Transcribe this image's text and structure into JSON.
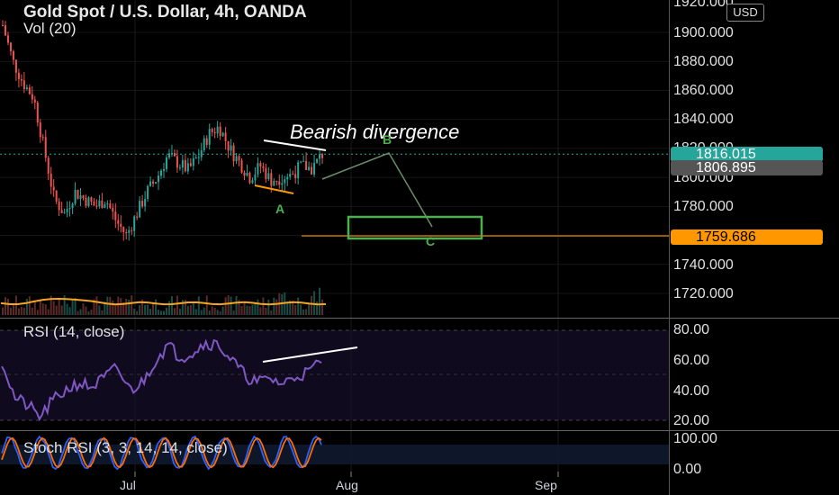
{
  "header": {
    "title": "Gold Spot / U.S. Dollar, 4h, OANDA",
    "volume_label": "Vol (20)"
  },
  "price_axis": {
    "labels": [
      "1920.000",
      "1900.000",
      "1880.000",
      "1860.000",
      "1840.000",
      "1820.000",
      "1800.000",
      "1780.000",
      "1740.000",
      "1720.000"
    ],
    "currency": "USD",
    "last_price": "1816.015",
    "second_price": "1806.895",
    "target_price": "1759.686"
  },
  "annotations": {
    "bearish_divergence": "Bearish divergence",
    "wave_a": "A",
    "wave_b": "B",
    "wave_c": "C"
  },
  "rsi": {
    "label": "RSI (14, close)",
    "axis_labels": [
      "80.00",
      "60.00",
      "40.00",
      "20.00"
    ]
  },
  "stoch_rsi": {
    "label": "Stoch RSI (3, 3, 14, 14, close)",
    "axis_labels": [
      "100.00",
      "0.00"
    ]
  },
  "time_axis": {
    "labels": [
      "Jul",
      "Aug",
      "Sep"
    ]
  },
  "colors": {
    "up_candle": "#26a69a",
    "down_candle": "#ef5350",
    "last_price_tag": "#26a69a",
    "second_price_tag": "#555555",
    "target_line": "#ff9800",
    "rsi_line": "#7e57c2",
    "wave_box": "#4caf50"
  },
  "chart_data": {
    "type": "candlestick",
    "symbol": "XAUUSD",
    "timeframe": "4h",
    "y_range": [
      1710,
      1925
    ],
    "key_levels": {
      "last": 1816.015,
      "close_marker": 1806.895,
      "target": 1759.686
    },
    "price_path": [
      1905,
      1880,
      1865,
      1855,
      1820,
      1785,
      1775,
      1790,
      1785,
      1780,
      1785,
      1770,
      1760,
      1775,
      1790,
      1800,
      1815,
      1810,
      1805,
      1815,
      1830,
      1835,
      1820,
      1810,
      1800,
      1808,
      1798,
      1800,
      1802,
      1808,
      1806,
      1816
    ],
    "rsi_path": [
      60,
      35,
      30,
      22,
      33,
      40,
      45,
      42,
      48,
      55,
      40,
      45,
      60,
      70,
      62,
      66,
      72,
      70,
      60,
      50,
      45,
      48,
      44,
      50,
      52,
      60
    ],
    "rsi_range": [
      15,
      85
    ],
    "stoch_range": [
      0,
      100
    ]
  }
}
